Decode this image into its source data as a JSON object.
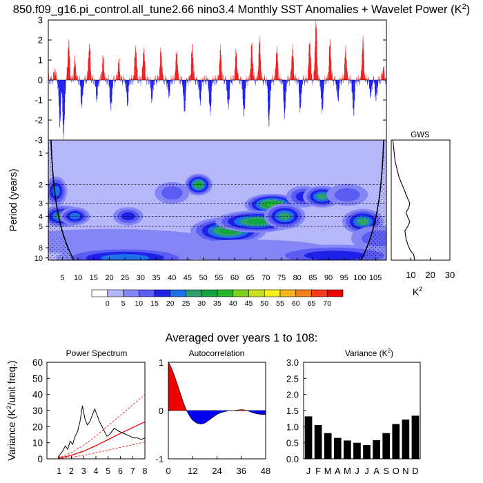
{
  "title_main": "850.f09_g16.pi_control.all_tune2.66 nino3.4 Monthly SST Anomalies + Wavelet Power (K",
  "title_sup": "2",
  "title_close": ")",
  "averaged_title": "Averaged over years 1 to 108:",
  "colors": {
    "positive": "#ee0000",
    "negative": "#0000ee",
    "bar": "#000000",
    "cone": "#000000"
  },
  "chart_data": [
    {
      "id": "anomaly",
      "type": "bar",
      "title": "Monthly SST anomalies",
      "xlim": [
        0.5,
        108.5
      ],
      "ylim": [
        -3,
        3
      ],
      "yticks": [
        3,
        2,
        1,
        0,
        -1,
        -2,
        -3
      ],
      "ytick_labels": [
        "3",
        "2",
        "1",
        "0",
        "-1",
        "-2",
        "-3"
      ],
      "bursts": [
        {
          "year": 2.6,
          "amp": 0.5
        },
        {
          "year": 4.2,
          "amp": -2.2
        },
        {
          "year": 5.4,
          "amp": -2.8
        },
        {
          "year": 7.0,
          "amp": 1.9
        },
        {
          "year": 9.0,
          "amp": 1.0
        },
        {
          "year": 11.2,
          "amp": -1.3
        },
        {
          "year": 13.6,
          "amp": 1.8
        },
        {
          "year": 16.0,
          "amp": -0.9
        },
        {
          "year": 18.0,
          "amp": 1.1
        },
        {
          "year": 20.5,
          "amp": -1.5
        },
        {
          "year": 23.0,
          "amp": 0.9
        },
        {
          "year": 25.8,
          "amp": -1.2
        },
        {
          "year": 28.4,
          "amp": 1.7
        },
        {
          "year": 31.0,
          "amp": 1.6
        },
        {
          "year": 33.6,
          "amp": -1.0
        },
        {
          "year": 36.5,
          "amp": 1.5
        },
        {
          "year": 39.0,
          "amp": -0.8
        },
        {
          "year": 41.5,
          "amp": 1.4
        },
        {
          "year": 44.0,
          "amp": -1.6
        },
        {
          "year": 46.5,
          "amp": 1.7
        },
        {
          "year": 49.0,
          "amp": -1.1
        },
        {
          "year": 52.2,
          "amp": -1.7
        },
        {
          "year": 55.5,
          "amp": 1.5
        },
        {
          "year": 58.0,
          "amp": -1.4
        },
        {
          "year": 60.5,
          "amp": 1.4
        },
        {
          "year": 63.0,
          "amp": -1.8
        },
        {
          "year": 65.5,
          "amp": 1.8
        },
        {
          "year": 68.0,
          "amp": 2.0
        },
        {
          "year": 71.0,
          "amp": -2.2
        },
        {
          "year": 73.5,
          "amp": 1.6
        },
        {
          "year": 76.0,
          "amp": -1.8
        },
        {
          "year": 78.5,
          "amp": 1.6
        },
        {
          "year": 81.0,
          "amp": -1.5
        },
        {
          "year": 84.0,
          "amp": 2.0
        },
        {
          "year": 86.0,
          "amp": 2.9
        },
        {
          "year": 88.0,
          "amp": -1.6
        },
        {
          "year": 90.5,
          "amp": 1.9
        },
        {
          "year": 93.0,
          "amp": -1.0
        },
        {
          "year": 95.5,
          "amp": 1.5
        },
        {
          "year": 98.0,
          "amp": -1.7
        },
        {
          "year": 101.0,
          "amp": 2.0
        },
        {
          "year": 103.5,
          "amp": -0.8
        },
        {
          "year": 105.2,
          "amp": -1.0
        },
        {
          "year": 107.5,
          "amp": 0.6
        }
      ]
    },
    {
      "id": "wavelet",
      "type": "heatmap",
      "ylabel": "Period (years)",
      "xlim": [
        0.5,
        108.5
      ],
      "ylim_period": [
        0.75,
        10.5
      ],
      "xticks": [
        5,
        10,
        15,
        20,
        25,
        30,
        35,
        40,
        45,
        50,
        55,
        60,
        65,
        70,
        75,
        80,
        85,
        90,
        95,
        100,
        105
      ],
      "yticks": [
        1,
        2,
        3,
        4,
        5,
        8,
        10
      ],
      "dashed_periods": [
        2,
        3,
        4,
        5
      ],
      "cone_coefficient": 0.75,
      "blobs": [
        {
          "year": 3,
          "period": 2.3,
          "sx": 1.6,
          "sy": 0.16,
          "value": 22
        },
        {
          "year": 5,
          "period": 4.0,
          "sx": 3.2,
          "sy": 0.12,
          "value": 28
        },
        {
          "year": 9,
          "period": 4.0,
          "sx": 2.2,
          "sy": 0.1,
          "value": 20
        },
        {
          "year": 26,
          "period": 4.0,
          "sx": 2.2,
          "sy": 0.1,
          "value": 15
        },
        {
          "year": 20,
          "period": 7.0,
          "sx": 16,
          "sy": 0.14,
          "value": 9
        },
        {
          "year": 25,
          "period": 10.0,
          "sx": 10,
          "sy": 0.12,
          "value": 20
        },
        {
          "year": 48.5,
          "period": 2.0,
          "sx": 2.0,
          "sy": 0.12,
          "value": 32
        },
        {
          "year": 40,
          "period": 2.4,
          "sx": 2.5,
          "sy": 0.12,
          "value": 12
        },
        {
          "year": 58,
          "period": 5.5,
          "sx": 5.5,
          "sy": 0.15,
          "value": 34
        },
        {
          "year": 72,
          "period": 3.1,
          "sx": 4.0,
          "sy": 0.12,
          "value": 35
        },
        {
          "year": 67,
          "period": 4.5,
          "sx": 6.0,
          "sy": 0.12,
          "value": 30
        },
        {
          "year": 76,
          "period": 4.0,
          "sx": 3.0,
          "sy": 0.14,
          "value": 25
        },
        {
          "year": 82,
          "period": 2.6,
          "sx": 2.5,
          "sy": 0.12,
          "value": 15
        },
        {
          "year": 88,
          "period": 2.6,
          "sx": 2.8,
          "sy": 0.12,
          "value": 28
        },
        {
          "year": 101,
          "period": 4.5,
          "sx": 3.0,
          "sy": 0.14,
          "value": 28
        },
        {
          "year": 96,
          "period": 2.5,
          "sx": 3.0,
          "sy": 0.12,
          "value": 12
        },
        {
          "year": 65,
          "period": 8.5,
          "sx": 12,
          "sy": 0.12,
          "value": 9
        },
        {
          "year": 92,
          "period": 9.5,
          "sx": 10,
          "sy": 0.12,
          "value": 16
        },
        {
          "year": 106,
          "period": 6.5,
          "sx": 4,
          "sy": 0.14,
          "value": 14
        }
      ]
    },
    {
      "id": "gws",
      "type": "line",
      "title": "GWS",
      "xlabel": "K",
      "xlabel_sup": "2",
      "xlim": [
        0,
        30
      ],
      "xticks": [
        10,
        20,
        30
      ],
      "periods": [
        0.75,
        1.2,
        1.7,
        2.2,
        2.6,
        3.0,
        3.3,
        3.7,
        4.1,
        4.5,
        5.0,
        5.5,
        6.5,
        7.5,
        8.5,
        9.3,
        10.5
      ],
      "power": [
        0.8,
        2.0,
        4.0,
        6.5,
        8.0,
        9.5,
        9.0,
        7.5,
        8.5,
        9.5,
        8.5,
        7.0,
        7.5,
        8.5,
        9.8,
        11.5,
        12.0
      ]
    },
    {
      "id": "power_spectrum",
      "type": "line",
      "title": "Power Spectrum",
      "ylabel": "Variance (K",
      "ylabel_sup": "2",
      "ylabel_end": "/unit freq.)",
      "xlim": [
        0,
        8
      ],
      "ylim": [
        0,
        60
      ],
      "xticks": [
        1,
        2,
        3,
        4,
        5,
        6,
        7,
        8
      ],
      "yticks": [
        0,
        10,
        20,
        30,
        40,
        50,
        60
      ],
      "spectrum": {
        "x": [
          0.9,
          1.1,
          1.3,
          1.5,
          1.7,
          1.9,
          2.1,
          2.3,
          2.5,
          2.7,
          2.9,
          3.1,
          3.3,
          3.5,
          3.7,
          3.9,
          4.1,
          4.3,
          4.5,
          4.7,
          4.9,
          5.1,
          5.3,
          5.5,
          5.7,
          5.9,
          6.2,
          6.5,
          6.8,
          7.1,
          7.4,
          7.7,
          8.0
        ],
        "y": [
          1,
          3,
          5,
          8,
          6,
          11,
          9,
          14,
          17,
          23,
          33,
          25,
          21,
          23,
          27,
          31,
          27,
          23,
          20,
          17,
          14,
          15,
          17,
          19,
          18,
          17,
          16,
          15,
          14,
          13,
          13,
          12,
          13
        ]
      },
      "red_noise": {
        "x": [
          0.9,
          2,
          3,
          4,
          5,
          6,
          7,
          8
        ],
        "y": [
          0.3,
          2.2,
          4.8,
          8.2,
          12,
          15.8,
          19.4,
          23
        ]
      },
      "ci_upper": {
        "x": [
          0.9,
          2,
          3,
          4,
          5,
          6,
          7,
          8
        ],
        "y": [
          0.6,
          3.8,
          8.4,
          14.2,
          20.6,
          27,
          33.5,
          40
        ]
      },
      "ci_lower": {
        "x": [
          0.9,
          2,
          3,
          4,
          5,
          6,
          7,
          8
        ],
        "y": [
          0.1,
          1.0,
          2.2,
          3.8,
          5.4,
          7.1,
          8.8,
          10.5
        ]
      }
    },
    {
      "id": "autocorrelation",
      "type": "area",
      "title": "Autocorrelation",
      "xlim": [
        0,
        48
      ],
      "ylim": [
        -1,
        1
      ],
      "xticks": [
        0,
        12,
        24,
        36,
        48
      ],
      "yticks": [
        -1,
        0,
        1
      ],
      "x": [
        0,
        1,
        2,
        3,
        4,
        5,
        6,
        7,
        8,
        9,
        10,
        11,
        12,
        14,
        16,
        18,
        20,
        22,
        24,
        26,
        28,
        30,
        32,
        34,
        36,
        38,
        40,
        42,
        44,
        46,
        48
      ],
      "y": [
        1.0,
        0.93,
        0.83,
        0.72,
        0.6,
        0.47,
        0.35,
        0.22,
        0.1,
        0.0,
        -0.08,
        -0.15,
        -0.2,
        -0.26,
        -0.28,
        -0.26,
        -0.2,
        -0.14,
        -0.08,
        -0.04,
        -0.02,
        0.0,
        0.0,
        0.01,
        0.02,
        0.01,
        -0.02,
        -0.05,
        -0.07,
        -0.08,
        -0.08
      ]
    },
    {
      "id": "variance",
      "type": "bar",
      "title": "Variance (K",
      "title_sup": "2",
      "title_end": ")",
      "categories": [
        "J",
        "F",
        "M",
        "A",
        "M",
        "J",
        "J",
        "A",
        "S",
        "O",
        "N",
        "D"
      ],
      "values": [
        1.32,
        1.05,
        0.8,
        0.65,
        0.57,
        0.5,
        0.43,
        0.58,
        0.8,
        1.08,
        1.22,
        1.34
      ],
      "ylim": [
        0,
        3.0
      ],
      "yticks": [
        0.0,
        0.5,
        1.0,
        1.5,
        2.0,
        2.5,
        3.0
      ],
      "ytick_labels": [
        "0.0",
        "0.5",
        "1.0",
        "1.5",
        "2.0",
        "2.5",
        "3.0"
      ]
    }
  ],
  "colorbar": {
    "labels": [
      "0",
      "5",
      "10",
      "15",
      "20",
      "25",
      "30",
      "35",
      "40",
      "45",
      "50",
      "55",
      "60",
      "65",
      "70"
    ],
    "colors": [
      "#ffffff",
      "#b6b7fb",
      "#8586f6",
      "#5a5cf3",
      "#1e22e8",
      "#1e72e8",
      "#2fa06c",
      "#11a43f",
      "#26b829",
      "#7dd11a",
      "#c8e21a",
      "#f6f01c",
      "#f6b31c",
      "#f67d1c",
      "#f63a1c",
      "#ee0000"
    ]
  }
}
